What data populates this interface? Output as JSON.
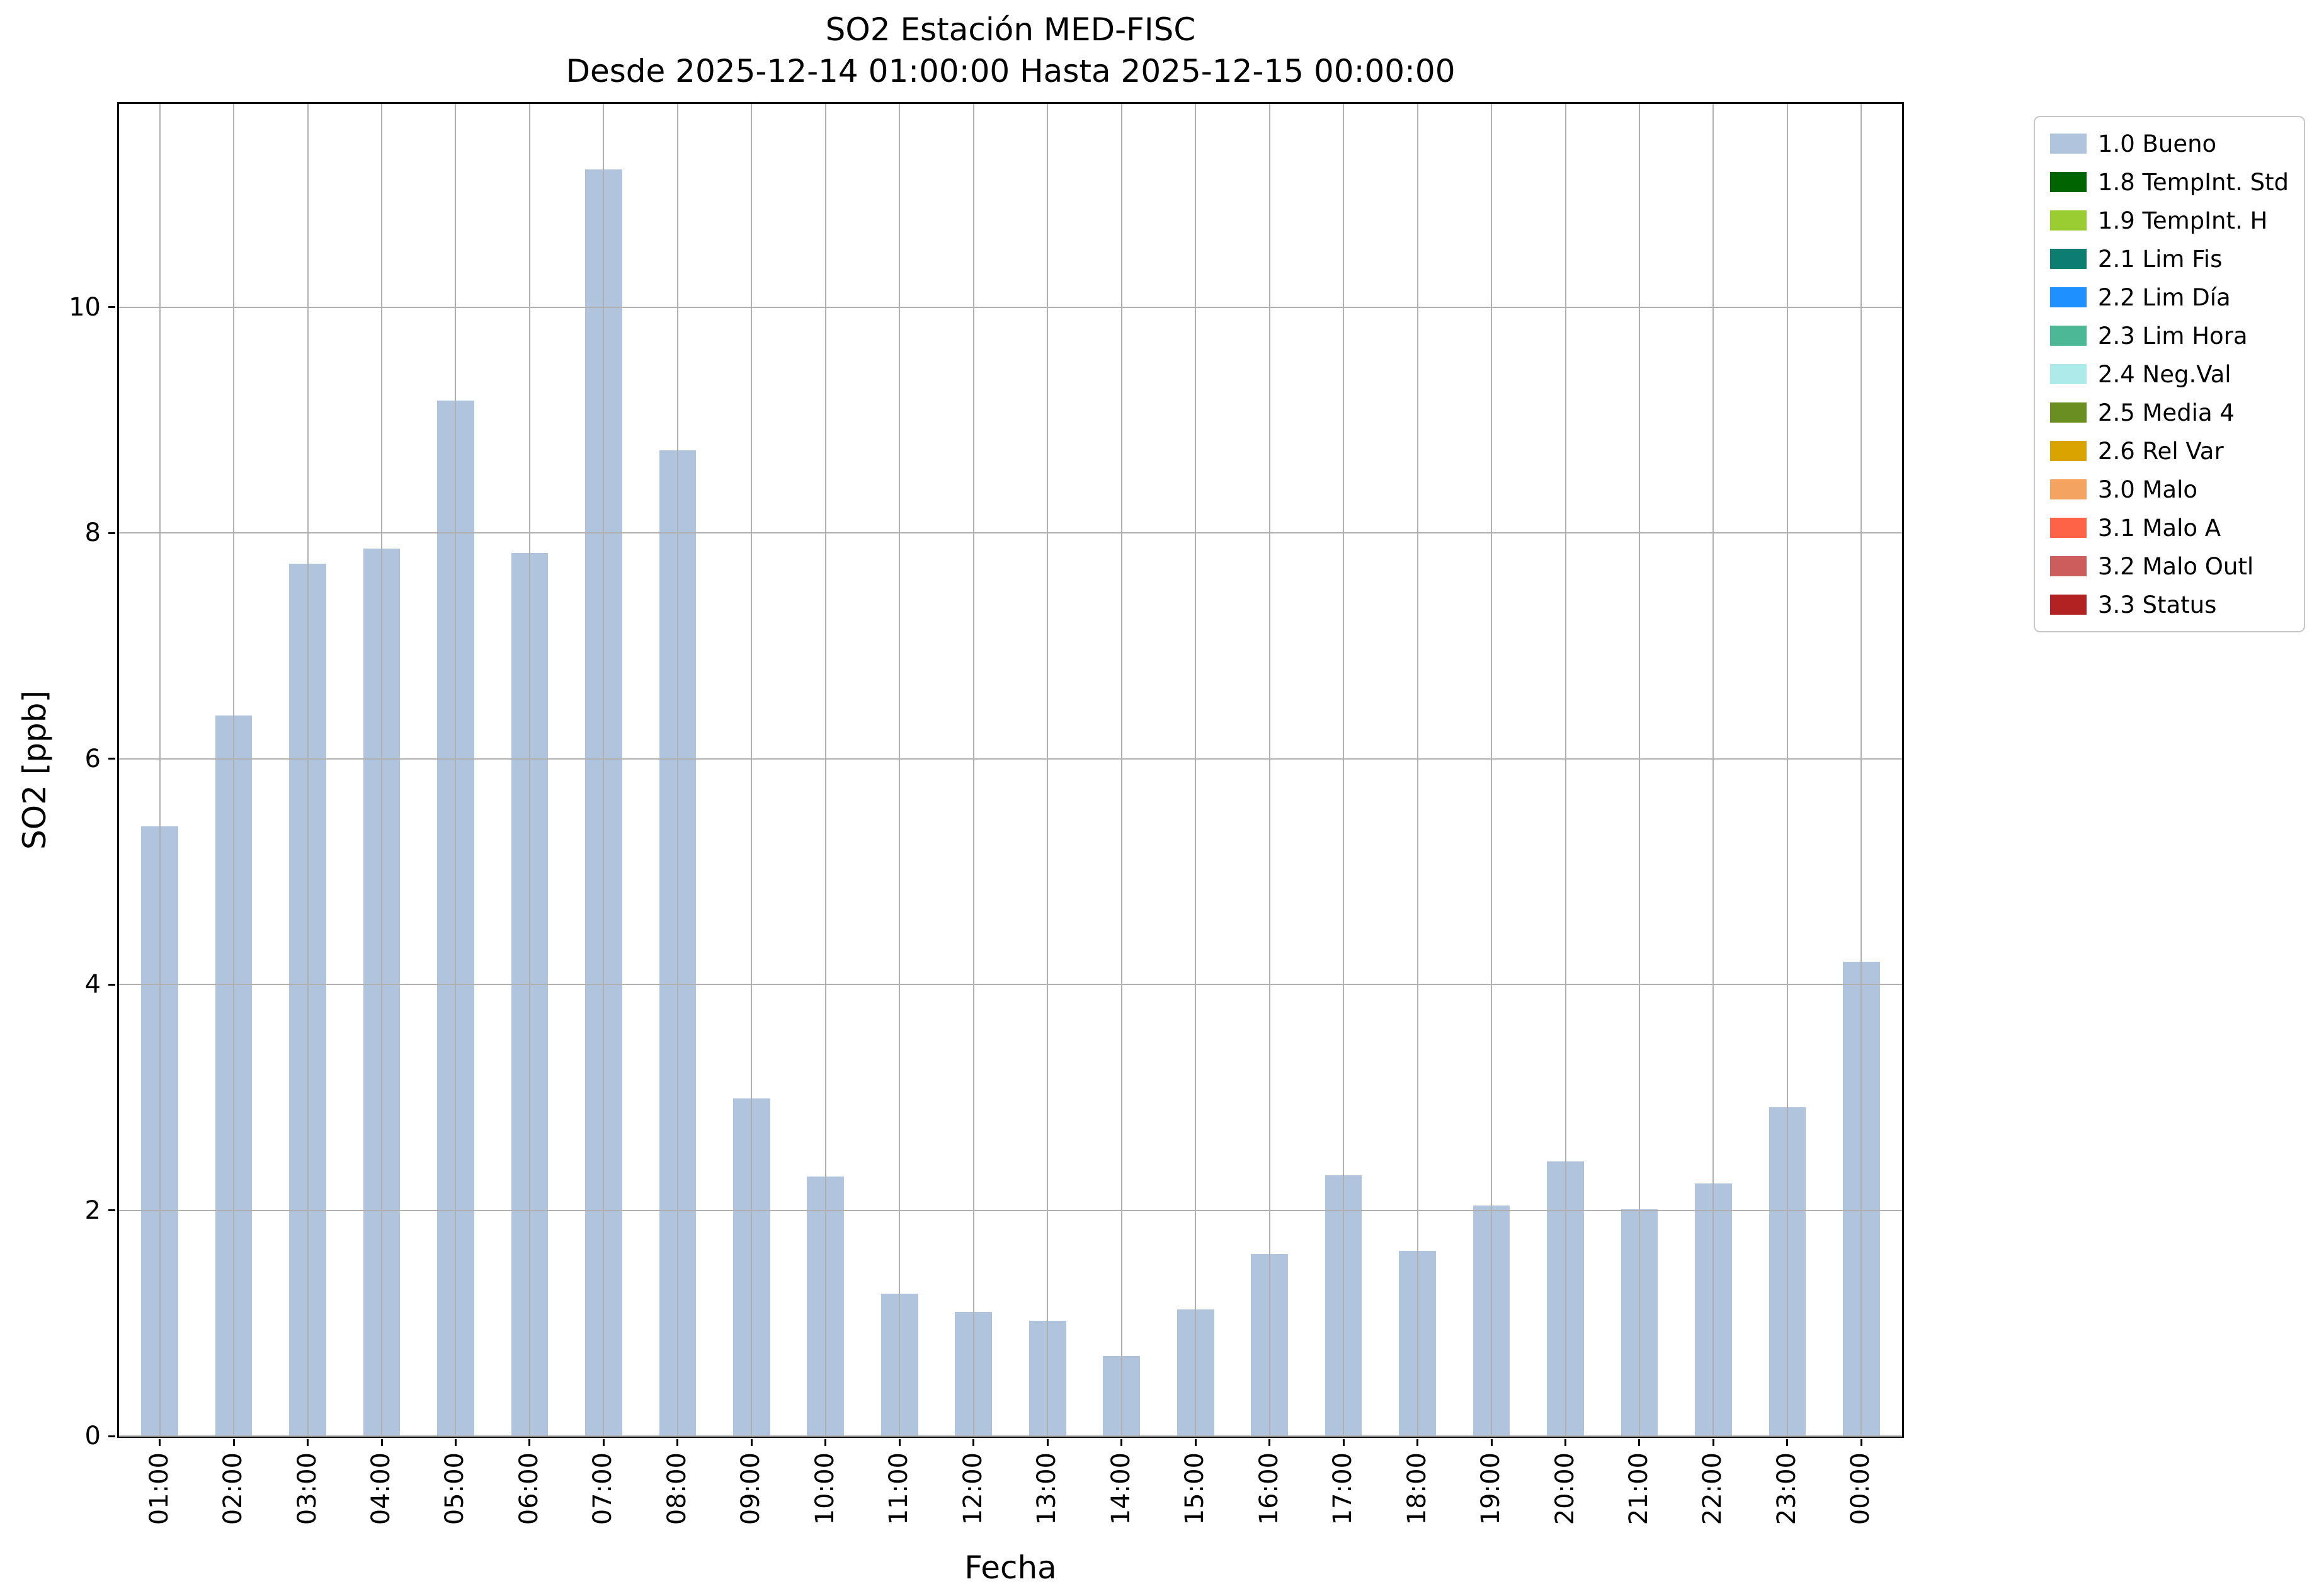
{
  "chart": {
    "title": "SO2 Estación MED-FISC",
    "subtitle": "Desde 2025-12-14 01:00:00 Hasta 2025-12-15 00:00:00",
    "xlabel": "Fecha",
    "ylabel": "SO2 [ppb]"
  },
  "chart_data": {
    "type": "bar",
    "title": "SO2 Estación MED-FISC",
    "subtitle": "Desde 2025-12-14 01:00:00 Hasta 2025-12-15 00:00:00",
    "xlabel": "Fecha",
    "ylabel": "SO2 [ppb]",
    "categories": [
      "01:00",
      "02:00",
      "03:00",
      "04:00",
      "05:00",
      "06:00",
      "07:00",
      "08:00",
      "09:00",
      "10:00",
      "11:00",
      "12:00",
      "13:00",
      "14:00",
      "15:00",
      "16:00",
      "17:00",
      "18:00",
      "19:00",
      "20:00",
      "21:00",
      "22:00",
      "23:00",
      "00:00"
    ],
    "values": [
      5.4,
      6.38,
      7.73,
      7.86,
      9.17,
      7.82,
      11.22,
      8.73,
      2.99,
      2.3,
      1.26,
      1.1,
      1.02,
      0.71,
      1.12,
      1.61,
      2.31,
      1.64,
      2.04,
      2.43,
      2.01,
      2.24,
      2.91,
      4.2
    ],
    "series_name": "1.0 Bueno",
    "bar_color": "#b0c4de",
    "grid": true,
    "grid_color": "#b0b0b0",
    "ylim": [
      0,
      11.8
    ],
    "yticks": [
      0,
      2,
      4,
      6,
      8,
      10
    ],
    "ytick_labels": [
      "0",
      "2",
      "4",
      "6",
      "8",
      "10"
    ],
    "bar_width_units": 0.5,
    "x_edge_padding_units": 0.55,
    "legend_position": "outside-top-right",
    "legend": {
      "entries": [
        {
          "label": "1.0 Bueno",
          "color": "#b0c4de"
        },
        {
          "label": "1.8 TempInt. Std",
          "color": "#006400"
        },
        {
          "label": "1.9 TempInt. H",
          "color": "#9acd32"
        },
        {
          "label": "2.1 Lim Fis",
          "color": "#0d7d72"
        },
        {
          "label": "2.2 Lim Día",
          "color": "#1e90ff"
        },
        {
          "label": "2.3 Lim Hora",
          "color": "#4db896"
        },
        {
          "label": "2.4 Neg.Val",
          "color": "#aeeaea"
        },
        {
          "label": "2.5 Media 4",
          "color": "#6b8e23"
        },
        {
          "label": "2.6 Rel Var",
          "color": "#d9a400"
        },
        {
          "label": "3.0 Malo",
          "color": "#f4a460"
        },
        {
          "label": "3.1 Malo A",
          "color": "#ff6347"
        },
        {
          "label": "3.2 Malo Outl",
          "color": "#cd5c5c"
        },
        {
          "label": "3.3 Status",
          "color": "#b22222"
        }
      ]
    }
  }
}
